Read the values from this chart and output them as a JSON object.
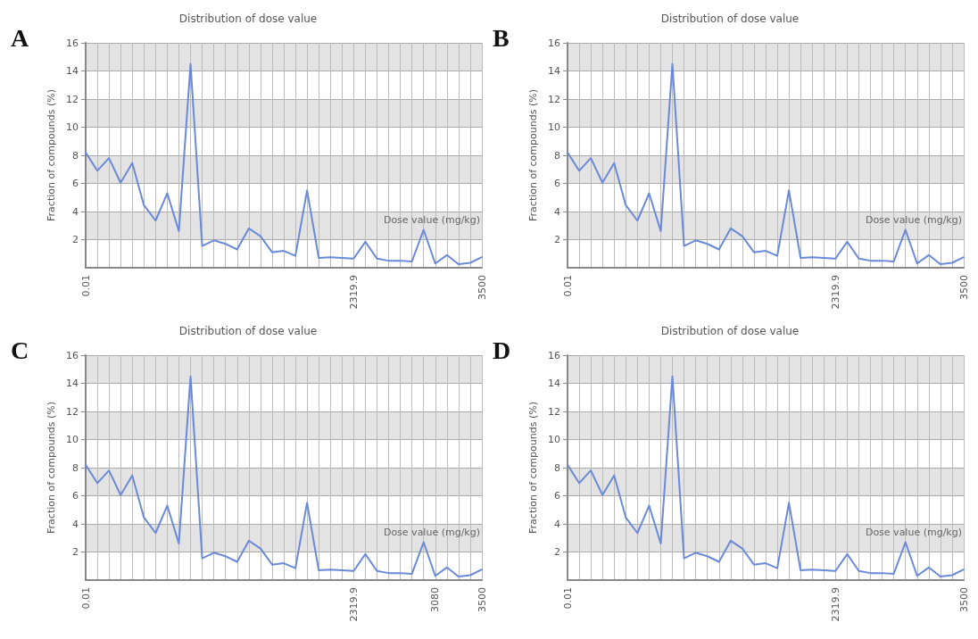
{
  "chart_data": [
    {
      "type": "line",
      "title": "Distribution of dose value",
      "xlabel": "Dose value (mg/kg)",
      "ylabel": "Fraction of compounds (%)",
      "annotations": [
        "A"
      ],
      "categories": [
        "0.01",
        null,
        null,
        null,
        null,
        null,
        null,
        null,
        null,
        null,
        null,
        null,
        null,
        null,
        null,
        null,
        null,
        null,
        null,
        null,
        null,
        null,
        null,
        "2319.9",
        null,
        null,
        null,
        null,
        null,
        null,
        null,
        null,
        null,
        null,
        "3500"
      ],
      "series": [
        {
          "color": "#6a8ad8",
          "values": [
            8.2,
            6.9,
            7.8,
            6.05,
            7.45,
            4.45,
            3.35,
            5.3,
            2.6,
            14.5,
            1.55,
            1.95,
            1.7,
            1.3,
            2.8,
            2.25,
            1.1,
            1.2,
            0.85,
            5.5,
            0.7,
            0.75,
            0.7,
            0.65,
            1.85,
            0.65,
            0.5,
            0.5,
            0.45,
            2.7,
            0.3,
            0.9,
            0.25,
            0.35,
            0.75
          ]
        }
      ],
      "ylim": [
        0,
        16
      ],
      "yticks": [
        2,
        4,
        6,
        8,
        10,
        12,
        14,
        16
      ],
      "grid": true,
      "marker": "none",
      "line_style": "solid"
    },
    {
      "type": "line",
      "title": "Distribution of dose value",
      "xlabel": "Dose value (mg/kg)",
      "ylabel": "Fraction of compounds (%)",
      "annotations": [
        "B"
      ],
      "categories": [
        "0.01",
        null,
        null,
        null,
        null,
        null,
        null,
        null,
        null,
        null,
        null,
        null,
        null,
        null,
        null,
        null,
        null,
        null,
        null,
        null,
        null,
        null,
        null,
        "2319.9",
        null,
        null,
        null,
        null,
        null,
        null,
        null,
        null,
        null,
        null,
        "3500"
      ],
      "series": [
        {
          "color": "#6a8ad8",
          "values": [
            8.2,
            6.9,
            7.8,
            6.05,
            7.45,
            4.45,
            3.35,
            5.3,
            2.6,
            14.5,
            1.55,
            1.95,
            1.7,
            1.3,
            2.8,
            2.25,
            1.1,
            1.2,
            0.85,
            5.5,
            0.7,
            0.75,
            0.7,
            0.65,
            1.85,
            0.65,
            0.5,
            0.5,
            0.45,
            2.7,
            0.3,
            0.9,
            0.25,
            0.35,
            0.75
          ]
        }
      ],
      "ylim": [
        0,
        16
      ],
      "yticks": [
        2,
        4,
        6,
        8,
        10,
        12,
        14,
        16
      ],
      "grid": true,
      "marker": "none",
      "line_style": "solid"
    },
    {
      "type": "line",
      "title": "Distribution of dose value",
      "xlabel": "Dose value (mg/kg)",
      "ylabel": "Fraction of compounds (%)",
      "annotations": [
        "C"
      ],
      "categories": [
        "0.01",
        null,
        null,
        null,
        null,
        null,
        null,
        null,
        null,
        null,
        null,
        null,
        null,
        null,
        null,
        null,
        null,
        null,
        null,
        null,
        null,
        null,
        null,
        "2319.9",
        null,
        null,
        null,
        null,
        null,
        null,
        "3080",
        null,
        null,
        null,
        "3500"
      ],
      "series": [
        {
          "color": "#6a8ad8",
          "values": [
            8.2,
            6.9,
            7.8,
            6.05,
            7.45,
            4.45,
            3.35,
            5.3,
            2.6,
            14.5,
            1.55,
            1.95,
            1.7,
            1.3,
            2.8,
            2.25,
            1.1,
            1.2,
            0.85,
            5.5,
            0.7,
            0.75,
            0.7,
            0.65,
            1.85,
            0.65,
            0.5,
            0.5,
            0.45,
            2.7,
            0.3,
            0.9,
            0.25,
            0.35,
            0.75
          ]
        }
      ],
      "ylim": [
        0,
        16
      ],
      "yticks": [
        2,
        4,
        6,
        8,
        10,
        12,
        14,
        16
      ],
      "grid": true,
      "marker": "none",
      "line_style": "solid"
    },
    {
      "type": "line",
      "title": "Distribution of dose value",
      "xlabel": "Dose value (mg/kg)",
      "ylabel": "Fraction of compounds (%)",
      "annotations": [
        "D"
      ],
      "categories": [
        "0.01",
        null,
        null,
        null,
        null,
        null,
        null,
        null,
        null,
        null,
        null,
        null,
        null,
        null,
        null,
        null,
        null,
        null,
        null,
        null,
        null,
        null,
        null,
        "2319.9",
        null,
        null,
        null,
        null,
        null,
        null,
        null,
        null,
        null,
        null,
        "3500"
      ],
      "series": [
        {
          "color": "#6a8ad8",
          "values": [
            8.2,
            6.9,
            7.8,
            6.05,
            7.45,
            4.45,
            3.35,
            5.3,
            2.6,
            14.5,
            1.55,
            1.95,
            1.7,
            1.3,
            2.8,
            2.25,
            1.1,
            1.2,
            0.85,
            5.5,
            0.7,
            0.75,
            0.7,
            0.65,
            1.85,
            0.65,
            0.5,
            0.5,
            0.45,
            2.7,
            0.3,
            0.9,
            0.25,
            0.35,
            0.75
          ]
        }
      ],
      "ylim": [
        0,
        16
      ],
      "yticks": [
        2,
        4,
        6,
        8,
        10,
        12,
        14,
        16
      ],
      "grid": true,
      "marker": "none",
      "line_style": "solid"
    }
  ]
}
